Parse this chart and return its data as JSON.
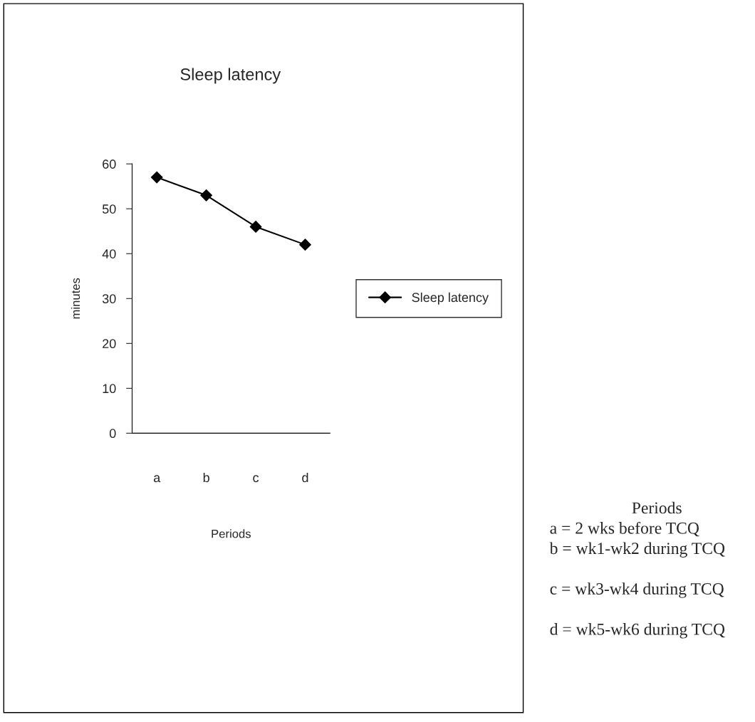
{
  "chart_data": {
    "type": "line",
    "title": "Sleep latency",
    "xlabel": "Periods",
    "ylabel": "minutes",
    "categories": [
      "a",
      "b",
      "c",
      "d"
    ],
    "series": [
      {
        "name": "Sleep latency",
        "color": "#000000",
        "values": [
          57,
          53,
          46,
          42
        ]
      }
    ],
    "ylim": [
      0,
      60
    ],
    "yticks": [
      0,
      10,
      20,
      30,
      40,
      50,
      60
    ],
    "grid": false,
    "legend": "right",
    "marker": "diamond",
    "line_style": "solid",
    "annotations": [
      "Periods",
      "a = 2 wks before TCQ",
      "b = wk1-wk2 during TCQ",
      "c = wk3-wk4 during TCQ",
      "d = wk5-wk6 during TCQ"
    ]
  }
}
